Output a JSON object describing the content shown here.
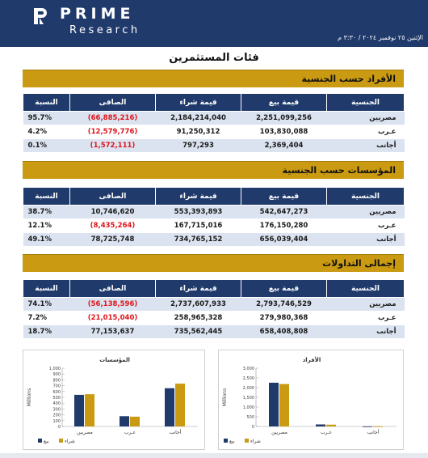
{
  "header": {
    "logo_word": "PRIME",
    "logo_sub": "Research",
    "date_line": "الإثنين ٢٥ نوفمبر ٢٠٢٤ / ٣:٣٠ م"
  },
  "page_title": "فئات المستثمرين",
  "table_headers": [
    "الجنسية",
    "قيمة بيع",
    "قيمة شراء",
    "الصافى",
    "النسبة"
  ],
  "sections": [
    {
      "title": "الأفراد حسب الجنسية",
      "rows": [
        {
          "nat": "مصريين",
          "sell": "2,251,099,256",
          "buy": "2,184,214,040",
          "net": "(66,885,216)",
          "pct": "95.7%"
        },
        {
          "nat": "عـرب",
          "sell": "103,830,088",
          "buy": "91,250,312",
          "net": "(12,579,776)",
          "pct": "4.2%"
        },
        {
          "nat": "أجانب",
          "sell": "2,369,404",
          "buy": "797,293",
          "net": "(1,572,111)",
          "pct": "0.1%"
        }
      ]
    },
    {
      "title": "المؤسسات حسب الجنسية",
      "rows": [
        {
          "nat": "مصريين",
          "sell": "542,647,273",
          "buy": "553,393,893",
          "net": "10,746,620",
          "pct": "38.7%"
        },
        {
          "nat": "عـرب",
          "sell": "176,150,280",
          "buy": "167,715,016",
          "net": "(8,435,264)",
          "pct": "12.1%"
        },
        {
          "nat": "أجانب",
          "sell": "656,039,404",
          "buy": "734,765,152",
          "net": "78,725,748",
          "pct": "49.1%"
        }
      ]
    },
    {
      "title": "إجمالى التداولات",
      "rows": [
        {
          "nat": "مصريين",
          "sell": "2,793,746,529",
          "buy": "2,737,607,933",
          "net": "(56,138,596)",
          "pct": "74.1%"
        },
        {
          "nat": "عـرب",
          "sell": "279,980,368",
          "buy": "258,965,328",
          "net": "(21,015,040)",
          "pct": "7.2%"
        },
        {
          "nat": "أجانب",
          "sell": "658,408,808",
          "buy": "735,562,445",
          "net": "77,153,637",
          "pct": "18.7%"
        }
      ]
    }
  ],
  "colors": {
    "navy": "#1f3a6b",
    "gold": "#c99a12",
    "negative": "#e0141b"
  },
  "chart_data": [
    {
      "type": "bar",
      "title": "المؤسسات",
      "ylabel": "Millions",
      "categories": [
        "مصريين",
        "عـرب",
        "أجانب"
      ],
      "ylim": [
        0,
        1000
      ],
      "yticks": [
        0,
        100,
        200,
        300,
        400,
        500,
        600,
        700,
        800,
        900,
        1000
      ],
      "series": [
        {
          "name": "بيع",
          "color": "#1f3a6b",
          "values": [
            542.65,
            176.15,
            656.04
          ]
        },
        {
          "name": "شراء",
          "color": "#c99a12",
          "values": [
            553.39,
            167.72,
            734.77
          ]
        }
      ],
      "legend": "bottom-left"
    },
    {
      "type": "bar",
      "title": "الأفراد",
      "ylabel": "Millions",
      "categories": [
        "مصريين",
        "عـرب",
        "أجانب"
      ],
      "ylim": [
        0,
        3000
      ],
      "yticks": [
        0,
        500,
        1000,
        1500,
        2000,
        2500,
        3000
      ],
      "series": [
        {
          "name": "بيع",
          "color": "#1f3a6b",
          "values": [
            2251.1,
            103.83,
            2.37
          ]
        },
        {
          "name": "شراء",
          "color": "#c99a12",
          "values": [
            2184.21,
            91.25,
            0.8
          ]
        }
      ],
      "legend": "bottom-left"
    }
  ]
}
